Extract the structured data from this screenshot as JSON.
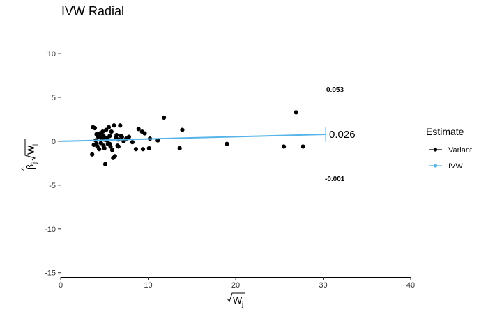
{
  "chart_data": {
    "type": "scatter",
    "title": "IVW Radial",
    "xlim": [
      0,
      40
    ],
    "ylim": [
      -15.5,
      13.5
    ],
    "x_ticks": [
      0,
      10,
      20,
      30,
      40
    ],
    "y_ticks": [
      -15,
      -10,
      -5,
      0,
      5,
      10
    ],
    "grid": false,
    "legend_position": "right",
    "legend": {
      "title": "Estimate",
      "entries": [
        {
          "label": "Variant",
          "color": "#000000"
        },
        {
          "label": "IVW",
          "color": "#56B4E9"
        }
      ]
    },
    "series": [
      {
        "name": "Variant",
        "color": "#000000",
        "points": [
          [
            3.6,
            -1.5
          ],
          [
            3.7,
            1.6
          ],
          [
            3.9,
            1.5
          ],
          [
            3.8,
            -0.4
          ],
          [
            4.0,
            0.1
          ],
          [
            4.1,
            0.8
          ],
          [
            4.2,
            -0.6
          ],
          [
            4.3,
            0.5
          ],
          [
            4.4,
            -0.9
          ],
          [
            4.5,
            0.9
          ],
          [
            4.6,
            -0.2
          ],
          [
            4.7,
            0.3
          ],
          [
            4.8,
            1.1
          ],
          [
            4.9,
            -0.5
          ],
          [
            5.0,
            0.2
          ],
          [
            5.0,
            -0.8
          ],
          [
            5.1,
            -2.6
          ],
          [
            5.2,
            1.3
          ],
          [
            5.3,
            0.1
          ],
          [
            5.4,
            -0.3
          ],
          [
            5.5,
            1.6
          ],
          [
            5.6,
            0.6
          ],
          [
            5.7,
            -0.6
          ],
          [
            5.8,
            1.1
          ],
          [
            5.9,
            -1.0
          ],
          [
            6.0,
            -1.9
          ],
          [
            6.1,
            1.8
          ],
          [
            6.2,
            -1.7
          ],
          [
            6.3,
            0.4
          ],
          [
            6.4,
            0.7
          ],
          [
            6.5,
            -0.5
          ],
          [
            6.6,
            0.2
          ],
          [
            6.8,
            1.8
          ],
          [
            6.9,
            0.6
          ],
          [
            7.0,
            0.5
          ],
          [
            7.2,
            0.0
          ],
          [
            7.5,
            0.3
          ],
          [
            7.8,
            0.5
          ],
          [
            8.2,
            -0.1
          ],
          [
            8.6,
            -0.9
          ],
          [
            8.9,
            1.4
          ],
          [
            9.3,
            1.1
          ],
          [
            9.4,
            -0.9
          ],
          [
            9.6,
            0.9
          ],
          [
            10.1,
            -0.8
          ],
          [
            10.2,
            0.3
          ],
          [
            11.1,
            0.1
          ],
          [
            11.8,
            2.7
          ],
          [
            13.6,
            -0.8
          ],
          [
            13.9,
            1.3
          ],
          [
            19.0,
            -0.3
          ],
          [
            25.5,
            -0.6
          ],
          [
            26.9,
            3.3
          ],
          [
            27.7,
            -0.6
          ],
          [
            4.6,
            0.5
          ],
          [
            5.3,
            0.4
          ],
          [
            4.1,
            -0.3
          ],
          [
            5.6,
            -0.3
          ],
          [
            4.9,
            0.6
          ],
          [
            6.6,
            -0.6
          ]
        ]
      },
      {
        "name": "IVW",
        "color": "#56B4E9",
        "line": {
          "slope": 0.026,
          "x_start": 0,
          "x_end": 30.3
        },
        "ci": {
          "lower": -0.001,
          "upper": 0.053
        }
      }
    ],
    "annotations": {
      "estimate": "0.026",
      "upper": "0.053",
      "lower": "-0.001"
    }
  }
}
